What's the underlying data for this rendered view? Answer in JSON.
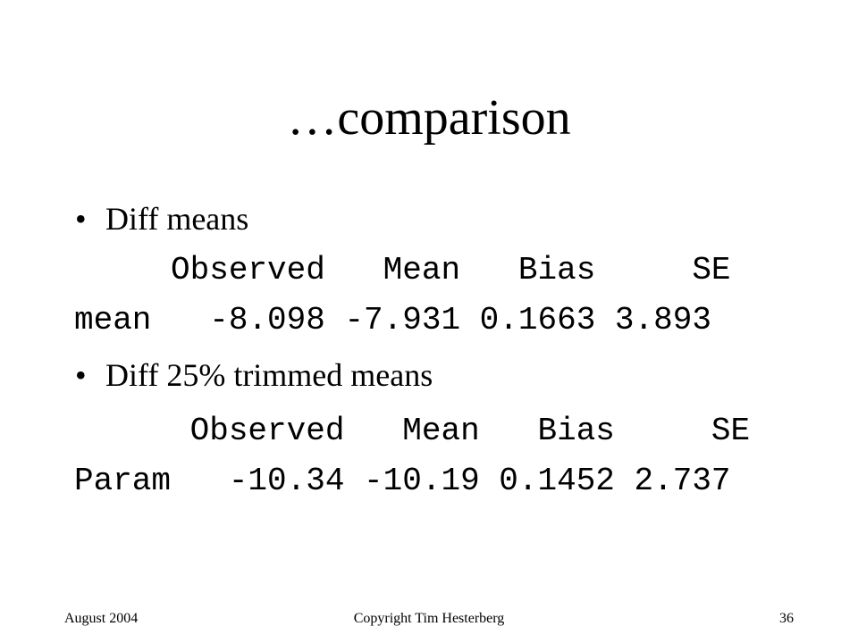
{
  "title": "…comparison",
  "bullets": [
    {
      "text": "Diff means",
      "lines": [
        "     Observed   Mean   Bias     SE",
        "mean   -8.098 -7.931 0.1663 3.893"
      ]
    },
    {
      "text": "Diff 25% trimmed means",
      "lines": [
        "      Observed   Mean   Bias     SE",
        "Param   -10.34 -10.19 0.1452 2.737"
      ]
    }
  ],
  "footer": {
    "left": "August 2004",
    "center": "Copyright Tim Hesterberg",
    "right": "36"
  }
}
